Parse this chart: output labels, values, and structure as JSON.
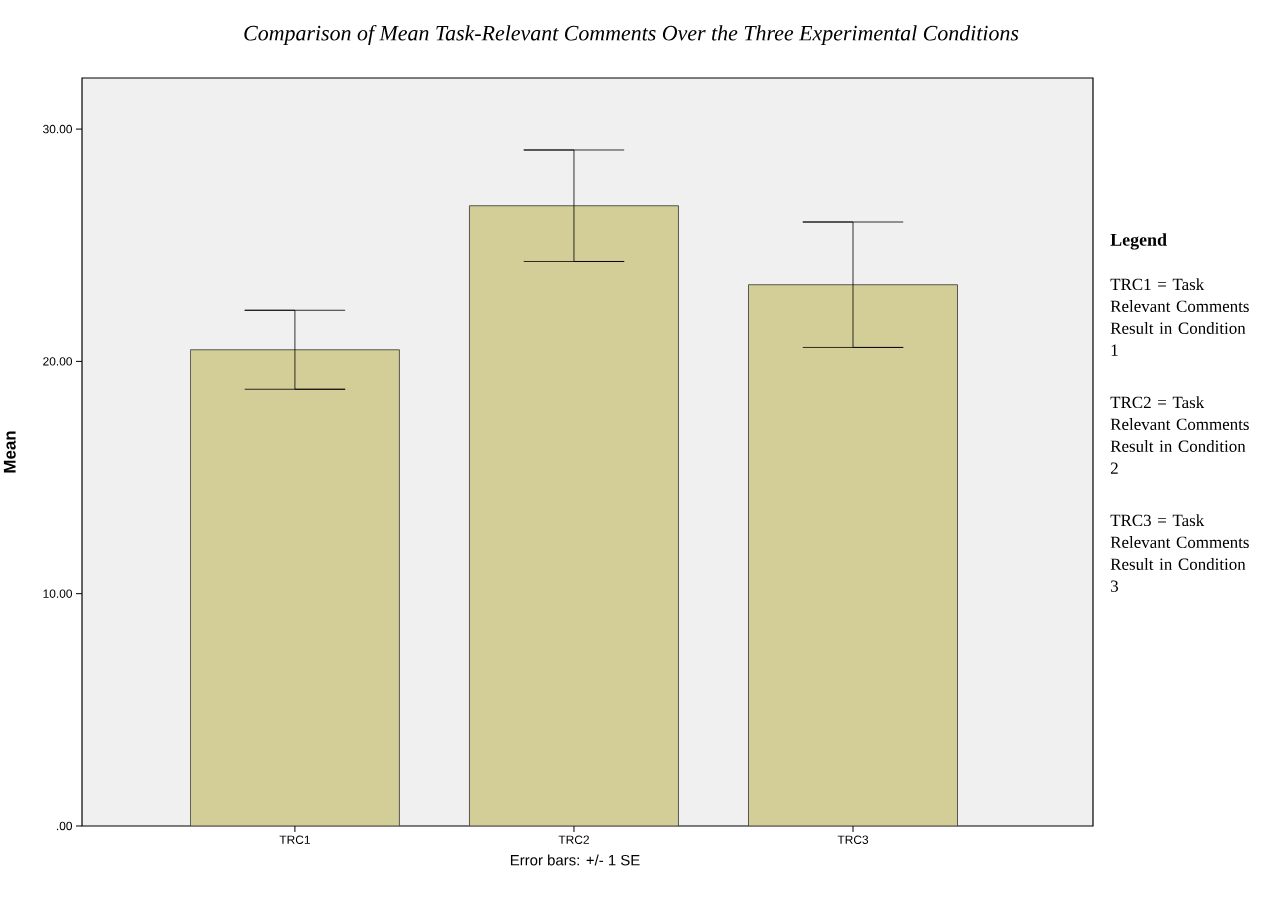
{
  "chart_data": {
    "type": "bar",
    "title": "Comparison of Mean Task-Relevant Comments Over the Three Experimental Conditions",
    "ylabel": "Mean",
    "categories": [
      "TRC1",
      "TRC2",
      "TRC3"
    ],
    "values": [
      20.5,
      26.7,
      23.3
    ],
    "errors": [
      1.7,
      2.4,
      2.7
    ],
    "color": "#d3cd98",
    "ylim": [
      0,
      32.2
    ],
    "yticks": [
      {
        "value": 0,
        "label": ".00"
      },
      {
        "value": 10,
        "label": "10.00"
      },
      {
        "value": 20,
        "label": "20.00"
      },
      {
        "value": 30,
        "label": "30.00"
      }
    ],
    "annotations": [
      "Error bars: +/- 1 SE",
      "Legend",
      "TRC1 = Task Relevant Comments Result in Condition 1",
      "TRC2 = Task Relevant Comments Result in Condition 2",
      "TRC3 = Task Relevant Comments Result in Condition 3"
    ]
  }
}
